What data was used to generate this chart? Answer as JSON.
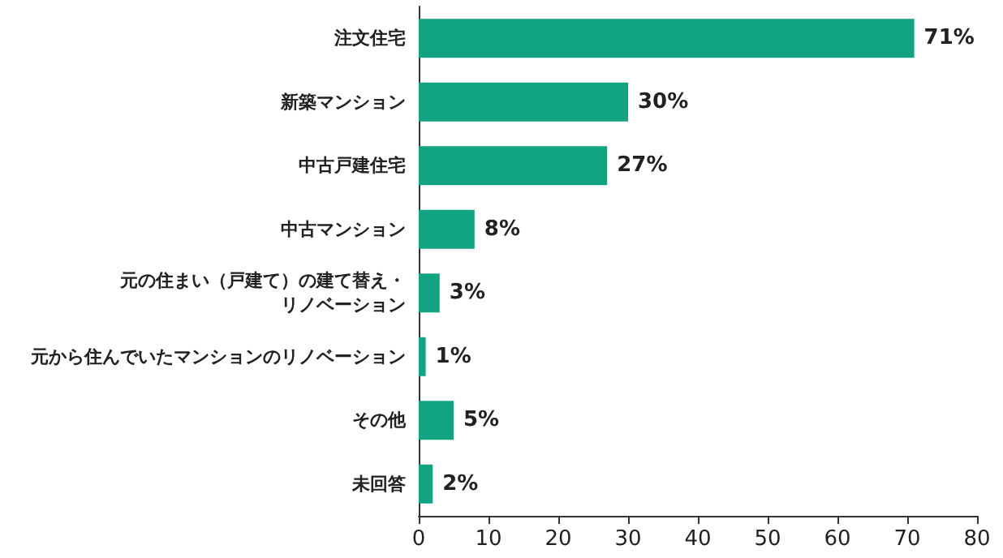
{
  "chart_data": {
    "type": "bar",
    "orientation": "horizontal",
    "categories": [
      "注文住宅",
      "新築マンション",
      "中古戸建住宅",
      "中古マンション",
      "元の住まい（戸建て）の建て替え・リノベーション",
      "元から住んでいたマンションのリノベーション",
      "その他",
      "未回答"
    ],
    "values": [
      71,
      30,
      27,
      8,
      3,
      1,
      5,
      2
    ],
    "value_labels": [
      "71%",
      "30%",
      "27%",
      "8%",
      "3%",
      "1%",
      "5%",
      "2%"
    ],
    "color": "#12a382",
    "xlim": [
      0,
      80
    ],
    "xticks": [
      0,
      10,
      20,
      30,
      40,
      50,
      60,
      70,
      80
    ],
    "grid": false
  }
}
